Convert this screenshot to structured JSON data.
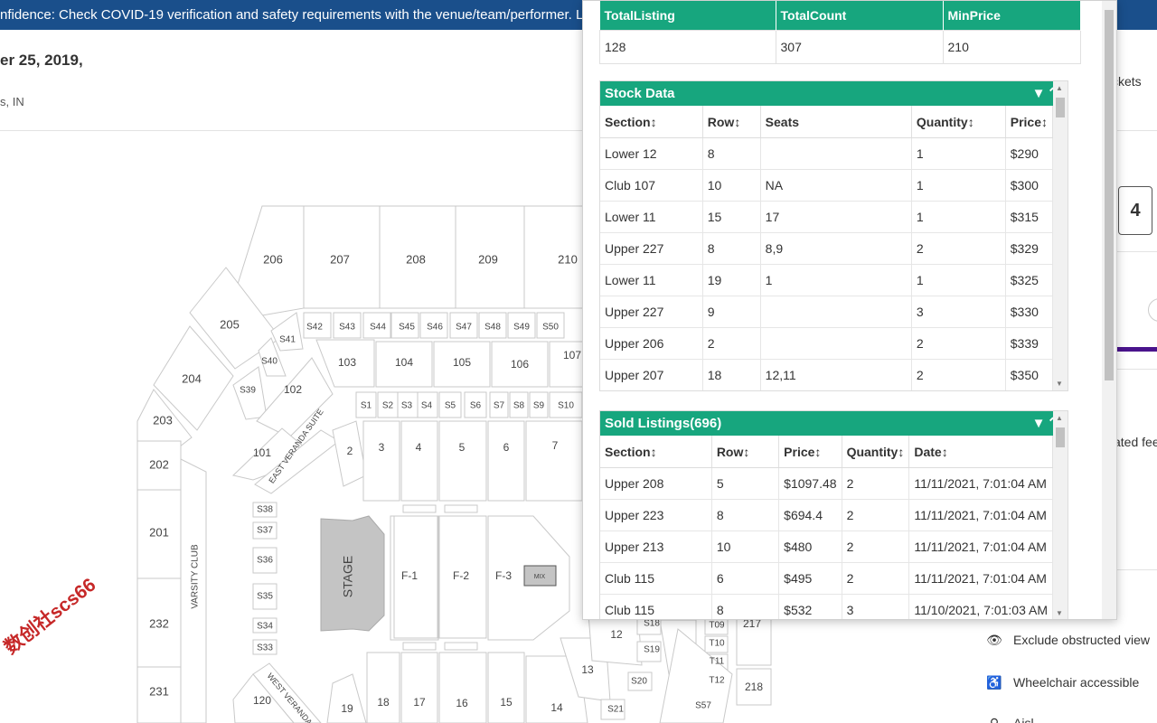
{
  "banner": {
    "text": "nfidence: Check COVID-19 verification and safety requirements with the venue/team/performer. Learn about"
  },
  "event": {
    "date": "er 25, 2019,",
    "location": "s, IN"
  },
  "right_side": {
    "tickets_text": "ckets",
    "quantity": "4",
    "fees_text": "ated fees",
    "filters": [
      {
        "icon": "eye-icon",
        "label": "Exclude obstructed view"
      },
      {
        "icon": "wheelchair-icon",
        "label": "Wheelchair accessible"
      },
      {
        "icon": "aisle-icon",
        "label": "Aisl"
      }
    ]
  },
  "seat_map": {
    "sections": [
      "206",
      "207",
      "208",
      "209",
      "210",
      "205",
      "204",
      "203",
      "202",
      "201",
      "232",
      "231",
      "S41",
      "S42",
      "S43",
      "S44",
      "S45",
      "S46",
      "S47",
      "S48",
      "S49",
      "S50",
      "S40",
      "S39",
      "103",
      "104",
      "105",
      "106",
      "107",
      "102",
      "101",
      "2",
      "3",
      "4",
      "5",
      "6",
      "7",
      "S1",
      "S2",
      "S3",
      "S4",
      "S5",
      "S6",
      "S7",
      "S8",
      "S9",
      "S10",
      "S38",
      "S37",
      "S36",
      "S35",
      "S34",
      "S33",
      "120",
      "19",
      "18",
      "17",
      "16",
      "15",
      "14",
      "13",
      "12",
      "S18",
      "S19",
      "S20",
      "S21",
      "T09",
      "T10",
      "T11",
      "T12",
      "217",
      "218",
      "S57",
      "F-1",
      "F-2",
      "F-3"
    ],
    "stage_label": "STAGE",
    "mix_label": "MIX",
    "varsity_club": "VARSITY CLUB",
    "east_suite": "EAST VERANDA SUITE",
    "west_suite": "WEST VERANDA"
  },
  "panel": {
    "summary": {
      "headers": [
        "TotalListing",
        "TotalCount",
        "MinPrice"
      ],
      "values": [
        "128",
        "307",
        "210"
      ]
    },
    "stock": {
      "title": "Stock Data",
      "headers": [
        "Section",
        "Row",
        "Seats",
        "Quantity",
        "Price"
      ],
      "rows": [
        [
          "Lower 12",
          "8",
          "",
          "1",
          "$290"
        ],
        [
          "Club 107",
          "10",
          "NA",
          "1",
          "$300"
        ],
        [
          "Lower 11",
          "15",
          "17",
          "1",
          "$315"
        ],
        [
          "Upper 227",
          "8",
          "8,9",
          "2",
          "$329"
        ],
        [
          "Lower 11",
          "19",
          "1",
          "1",
          "$325"
        ],
        [
          "Upper 227",
          "9",
          "",
          "3",
          "$330"
        ],
        [
          "Upper 206",
          "2",
          "",
          "2",
          "$339"
        ],
        [
          "Upper 207",
          "18",
          "12,11",
          "2",
          "$350"
        ]
      ]
    },
    "sold": {
      "title": "Sold Listings(696)",
      "headers": [
        "Section",
        "Row",
        "Price",
        "Quantity",
        "Date"
      ],
      "rows": [
        [
          "Upper 208",
          "5",
          "$1097.48",
          "2",
          "11/11/2021, 7:01:04 AM"
        ],
        [
          "Upper 223",
          "8",
          "$694.4",
          "2",
          "11/11/2021, 7:01:04 AM"
        ],
        [
          "Upper 213",
          "10",
          "$480",
          "2",
          "11/11/2021, 7:01:04 AM"
        ],
        [
          "Club 115",
          "6",
          "$495",
          "2",
          "11/11/2021, 7:01:04 AM"
        ],
        [
          "Club 115",
          "8",
          "$532",
          "3",
          "11/10/2021, 7:01:03 AM"
        ]
      ]
    }
  },
  "watermark": "数创社scs66"
}
